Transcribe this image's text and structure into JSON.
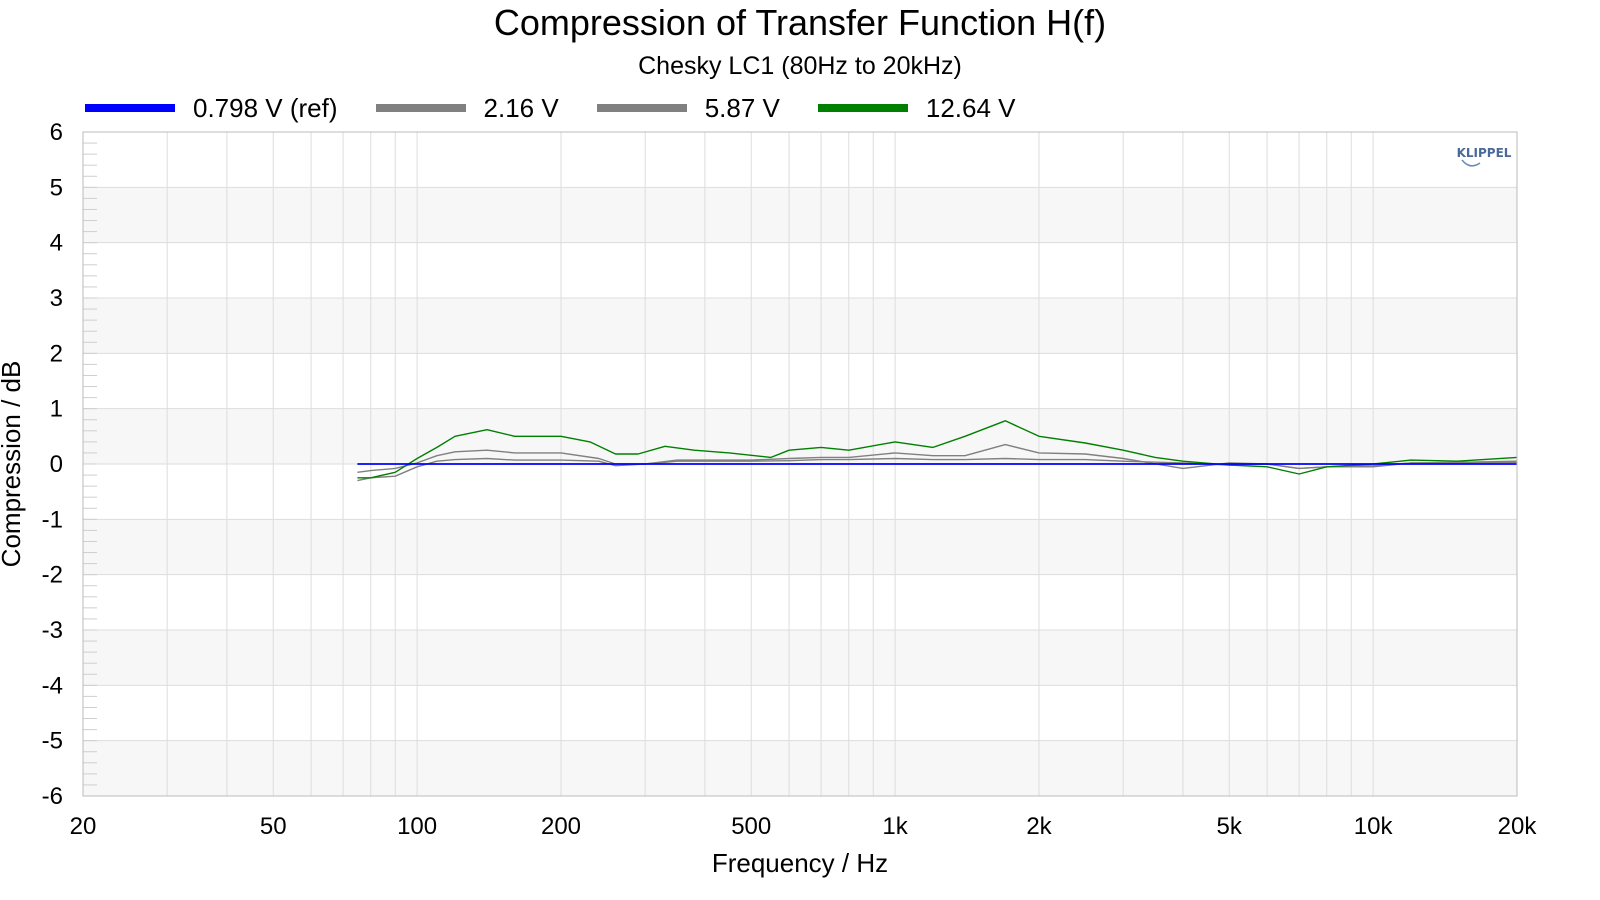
{
  "chart_data": {
    "type": "line",
    "title": "Compression of Transfer Function H(f)",
    "subtitle": "Chesky LC1 (80Hz to 20kHz)",
    "xlabel": "Frequency / Hz",
    "ylabel": "Compression / dB",
    "xscale": "log",
    "xlim": [
      20,
      20000
    ],
    "ylim": [
      -6,
      6
    ],
    "xticks": [
      20,
      50,
      100,
      200,
      500,
      1000,
      2000,
      5000,
      10000,
      20000
    ],
    "xtick_labels": [
      "20",
      "50",
      "100",
      "200",
      "500",
      "1k",
      "2k",
      "5k",
      "10k",
      "20k"
    ],
    "yticks": [
      6,
      5,
      4,
      3,
      2,
      1,
      0,
      -1,
      -2,
      -3,
      -4,
      -5,
      -6
    ],
    "ytick_labels": [
      "6",
      "5",
      "4",
      "3",
      "2",
      "1",
      "0",
      "-1",
      "-2",
      "-3",
      "-4",
      "-5",
      "-6"
    ],
    "grid": true,
    "legend_position": "top",
    "logo_text": "KLIPPEL",
    "series": [
      {
        "name": "0.798 V (ref)",
        "color": "#0000ff",
        "x": [
          75,
          20000
        ],
        "y": [
          0.0,
          0.0
        ]
      },
      {
        "name": "2.16 V",
        "color": "#808080",
        "x": [
          75,
          80,
          90,
          100,
          110,
          120,
          140,
          160,
          200,
          240,
          260,
          300,
          350,
          400,
          500,
          600,
          700,
          800,
          1000,
          1200,
          1400,
          1700,
          2000,
          2500,
          3000,
          4000,
          5000,
          6000,
          7000,
          8000,
          10000,
          12000,
          15000,
          20000
        ],
        "y": [
          -0.3,
          -0.25,
          -0.22,
          -0.05,
          0.05,
          0.08,
          0.1,
          0.07,
          0.07,
          0.05,
          -0.03,
          0.0,
          0.05,
          0.05,
          0.05,
          0.06,
          0.08,
          0.08,
          0.1,
          0.08,
          0.08,
          0.1,
          0.08,
          0.08,
          0.05,
          0.02,
          -0.02,
          0.0,
          -0.08,
          -0.05,
          -0.03,
          0.02,
          0.02,
          0.03
        ]
      },
      {
        "name": "5.87 V",
        "color": "#808080",
        "x": [
          75,
          80,
          90,
          100,
          110,
          120,
          140,
          160,
          200,
          240,
          260,
          300,
          350,
          400,
          500,
          600,
          700,
          800,
          1000,
          1200,
          1400,
          1700,
          2000,
          2500,
          3000,
          4000,
          5000,
          6000,
          7000,
          8000,
          10000,
          12000,
          15000,
          20000
        ],
        "y": [
          -0.15,
          -0.12,
          -0.08,
          0.02,
          0.15,
          0.22,
          0.25,
          0.2,
          0.2,
          0.1,
          0.0,
          0.0,
          0.07,
          0.07,
          0.07,
          0.1,
          0.12,
          0.12,
          0.2,
          0.15,
          0.15,
          0.35,
          0.2,
          0.18,
          0.1,
          -0.08,
          0.02,
          0.0,
          -0.08,
          -0.05,
          -0.05,
          0.02,
          0.03,
          0.05
        ]
      },
      {
        "name": "12.64 V",
        "color": "#008000",
        "x": [
          75,
          80,
          90,
          100,
          110,
          120,
          140,
          160,
          200,
          230,
          260,
          290,
          330,
          380,
          450,
          550,
          600,
          700,
          800,
          1000,
          1200,
          1400,
          1700,
          2000,
          2500,
          3000,
          3500,
          4000,
          5000,
          6000,
          7000,
          8000,
          10000,
          12000,
          15000,
          20000
        ],
        "y": [
          -0.25,
          -0.25,
          -0.15,
          0.1,
          0.3,
          0.5,
          0.62,
          0.5,
          0.5,
          0.4,
          0.18,
          0.18,
          0.32,
          0.25,
          0.2,
          0.12,
          0.25,
          0.3,
          0.25,
          0.4,
          0.3,
          0.5,
          0.78,
          0.5,
          0.38,
          0.25,
          0.12,
          0.05,
          -0.02,
          -0.05,
          -0.18,
          -0.05,
          0.0,
          0.07,
          0.05,
          0.12
        ]
      }
    ]
  }
}
